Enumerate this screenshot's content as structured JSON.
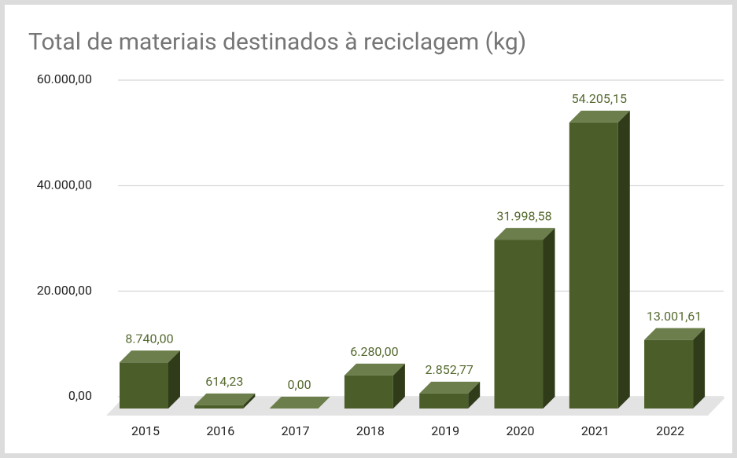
{
  "chart_data": {
    "type": "bar3d",
    "title": "Total de materiais destinados à reciclagem (kg)",
    "categories": [
      "2015",
      "2016",
      "2017",
      "2018",
      "2019",
      "2020",
      "2021",
      "2022"
    ],
    "values": [
      8740,
      614.23,
      0,
      6280,
      2852.77,
      31998.58,
      54205.15,
      13001.61
    ],
    "value_labels": [
      "8.740,00",
      "614,23",
      "0,00",
      "6.280,00",
      "2.852,77",
      "31.998,58",
      "54.205,15",
      "13.001,61"
    ],
    "color": "#4b5e2a",
    "ylim": [
      0,
      60000
    ],
    "yticks": [
      {
        "value": 0,
        "label": "0,00"
      },
      {
        "value": 20000,
        "label": "20.000,00"
      },
      {
        "value": 40000,
        "label": "40.000,00"
      },
      {
        "value": 60000,
        "label": "60.000,00"
      }
    ],
    "grid": true
  }
}
